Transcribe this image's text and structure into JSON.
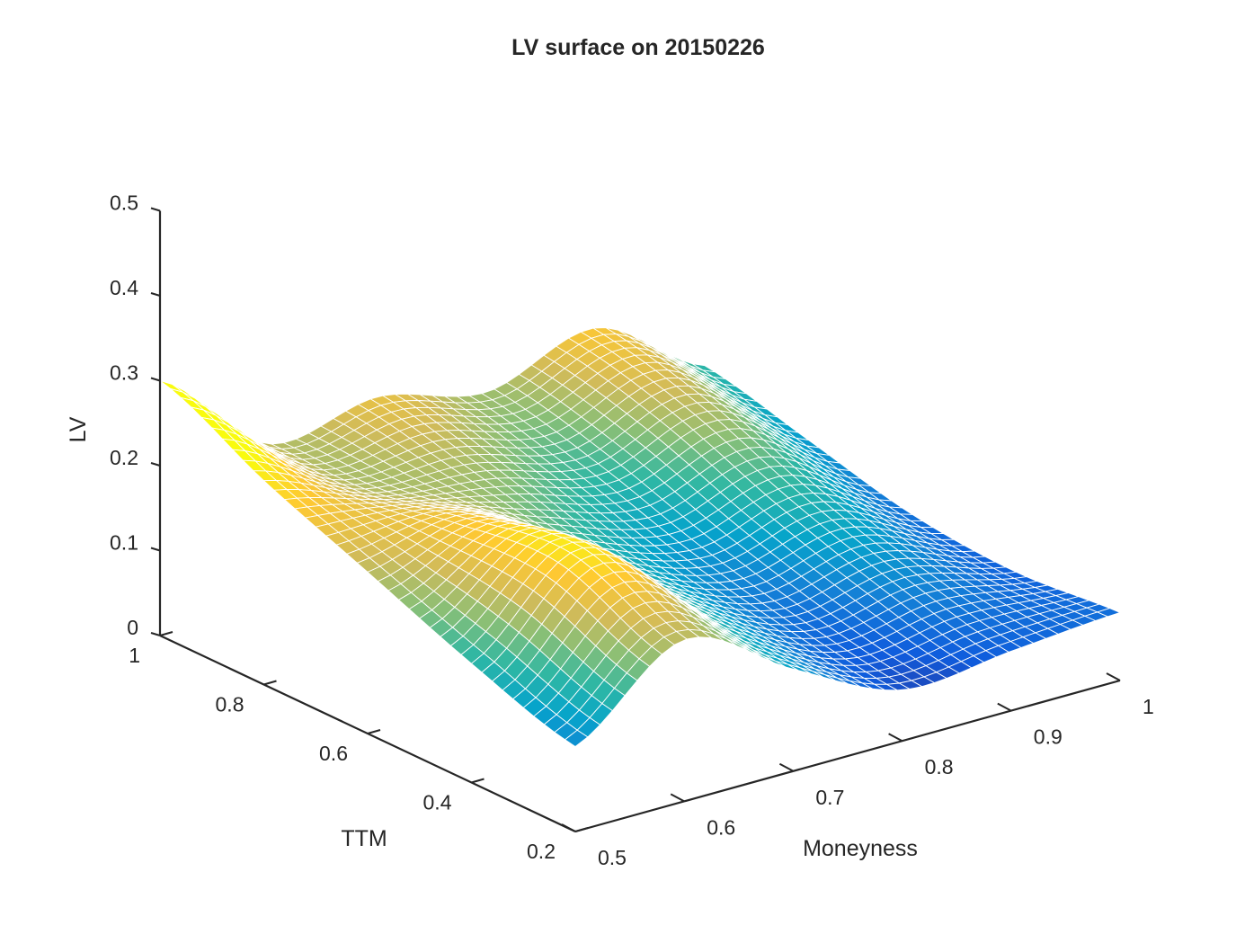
{
  "chart_data": {
    "type": "surface",
    "title": "LV surface on 20150226",
    "xlabel": "Moneyness",
    "ylabel": "TTM",
    "zlabel": "LV",
    "xlim": [
      0.5,
      1.0
    ],
    "ylim": [
      0.2,
      1.0
    ],
    "zlim": [
      0,
      0.5
    ],
    "xticks": [
      "0.5",
      "0.6",
      "0.7",
      "0.8",
      "0.9",
      "1"
    ],
    "yticks": [
      "0.2",
      "0.4",
      "0.6",
      "0.8",
      "1"
    ],
    "zticks": [
      "0",
      "0.1",
      "0.2",
      "0.3",
      "0.4",
      "0.5"
    ],
    "grid": false,
    "colormap": "parula",
    "colormap_colors": [
      "#352a87",
      "#0f5cdd",
      "#1481d6",
      "#06a4ca",
      "#2eb7a4",
      "#87bf77",
      "#d1bb59",
      "#fec832",
      "#f9fb0e"
    ],
    "mesh_edges": "#ffffff",
    "surface": {
      "moneyness": [
        0.5,
        0.6,
        0.7,
        0.8,
        0.9,
        1.0
      ],
      "ttm": [
        0.2,
        0.4,
        0.6,
        0.8,
        1.0
      ],
      "lv_rows_by_ttm": [
        [
          0.1,
          0.19,
          0.12,
          0.06,
          0.07,
          0.08
        ],
        [
          0.14,
          0.24,
          0.14,
          0.08,
          0.1,
          0.07
        ],
        [
          0.19,
          0.22,
          0.15,
          0.11,
          0.14,
          0.08
        ],
        [
          0.24,
          0.19,
          0.18,
          0.15,
          0.19,
          0.11
        ],
        [
          0.3,
          0.19,
          0.21,
          0.18,
          0.22,
          0.14
        ]
      ]
    }
  }
}
